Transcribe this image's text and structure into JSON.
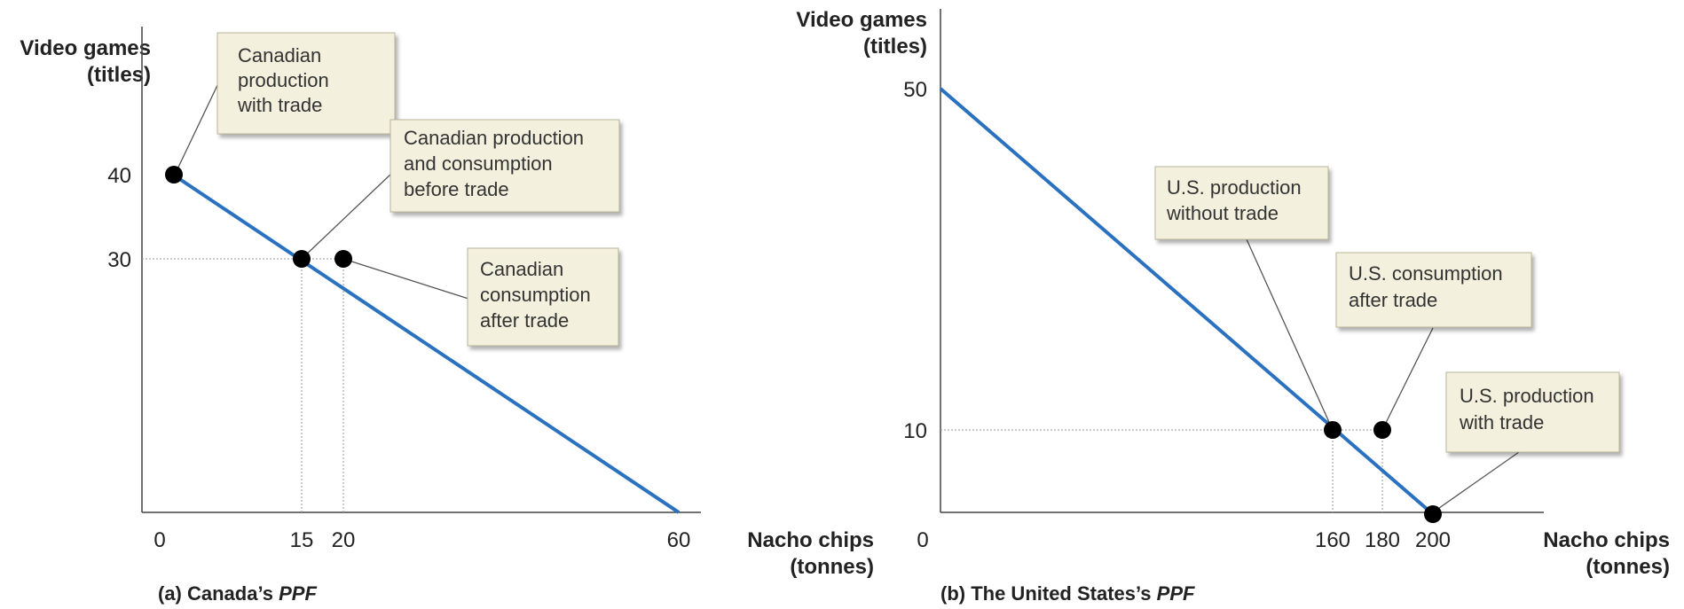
{
  "chart_data": [
    {
      "type": "line",
      "title": "(a) Canada's PPF",
      "title_parts": [
        "(a) Canada’s ",
        "PPF"
      ],
      "ylabel_lines": [
        "Video games",
        "(titles)"
      ],
      "xlabel_lines": [
        "Nacho chips",
        "(tonnes)"
      ],
      "xlim": [
        0,
        60
      ],
      "ylim": [
        0,
        40
      ],
      "x_ticks": [
        "0",
        "15",
        "20",
        "60"
      ],
      "y_ticks": [
        "40",
        "30"
      ],
      "series": [
        {
          "x": [
            0,
            60
          ],
          "y": [
            40,
            0
          ]
        }
      ],
      "points": [
        {
          "x": 0,
          "y": 40
        },
        {
          "x": 15,
          "y": 30
        },
        {
          "x": 20,
          "y": 30
        }
      ],
      "annotations": [
        {
          "lines": [
            "Canadian",
            "production",
            "with trade"
          ],
          "point": 0
        },
        {
          "lines": [
            "Canadian production",
            "and consumption",
            "before trade"
          ],
          "point": 1
        },
        {
          "lines": [
            "Canadian",
            "consumption",
            "after trade"
          ],
          "point": 2
        }
      ],
      "colors": {
        "line": "#2a72c0",
        "point": "#000000",
        "box_fill": "#f3f0dd",
        "box_border": "#b8b39a"
      }
    },
    {
      "type": "line",
      "title": "(b) The United States's PPF",
      "title_parts": [
        "(b) The United States’s ",
        "PPF"
      ],
      "ylabel_lines": [
        "Video games",
        "(titles)"
      ],
      "xlabel_lines": [
        "Nacho chips",
        "(tonnes)"
      ],
      "xlim": [
        0,
        200
      ],
      "ylim": [
        0,
        50
      ],
      "x_ticks": [
        "0",
        "160",
        "180",
        "200"
      ],
      "y_ticks": [
        "50",
        "10"
      ],
      "series": [
        {
          "x": [
            0,
            200
          ],
          "y": [
            50,
            0
          ]
        }
      ],
      "points": [
        {
          "x": 160,
          "y": 10
        },
        {
          "x": 180,
          "y": 10
        },
        {
          "x": 200,
          "y": 0
        }
      ],
      "annotations": [
        {
          "lines": [
            "U.S. production",
            "without trade"
          ],
          "point": 0
        },
        {
          "lines": [
            "U.S. consumption",
            "after trade"
          ],
          "point": 1
        },
        {
          "lines": [
            "U.S. production",
            "with trade"
          ],
          "point": 2
        }
      ],
      "colors": {
        "line": "#2a72c0",
        "point": "#000000",
        "box_fill": "#f3f0dd",
        "box_border": "#b8b39a"
      }
    }
  ]
}
